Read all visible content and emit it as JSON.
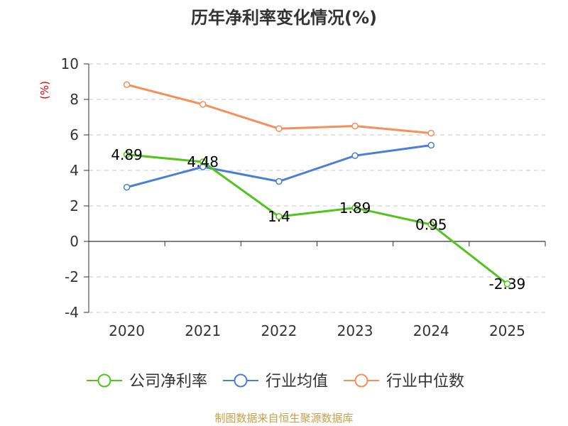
{
  "chart_data": {
    "type": "line",
    "title": "历年净利率变化情况(%)",
    "ylabel": "(%)",
    "xlabel": "",
    "categories": [
      "2020",
      "2021",
      "2022",
      "2023",
      "2024",
      "2025"
    ],
    "ylim": [
      -4,
      10
    ],
    "yticks": [
      -4,
      -2,
      0,
      2,
      4,
      6,
      8,
      10
    ],
    "grid": true,
    "legend_position": "bottom",
    "series": [
      {
        "name": "公司净利率",
        "color": "#52c41a",
        "values": [
          4.89,
          4.48,
          1.4,
          1.89,
          0.95,
          -2.39
        ],
        "labels": [
          "4.89",
          "4.48",
          "1.4",
          "1.89",
          "0.95",
          "-2.39"
        ]
      },
      {
        "name": "行业均值",
        "color": "#4a7fd6",
        "values": [
          3.05,
          4.2,
          3.38,
          4.83,
          5.42,
          null
        ]
      },
      {
        "name": "行业中位数",
        "color": "#f5905a",
        "values": [
          8.83,
          7.72,
          6.35,
          6.5,
          6.1,
          null
        ]
      }
    ]
  },
  "source": "制图数据来自恒生聚源数据库"
}
